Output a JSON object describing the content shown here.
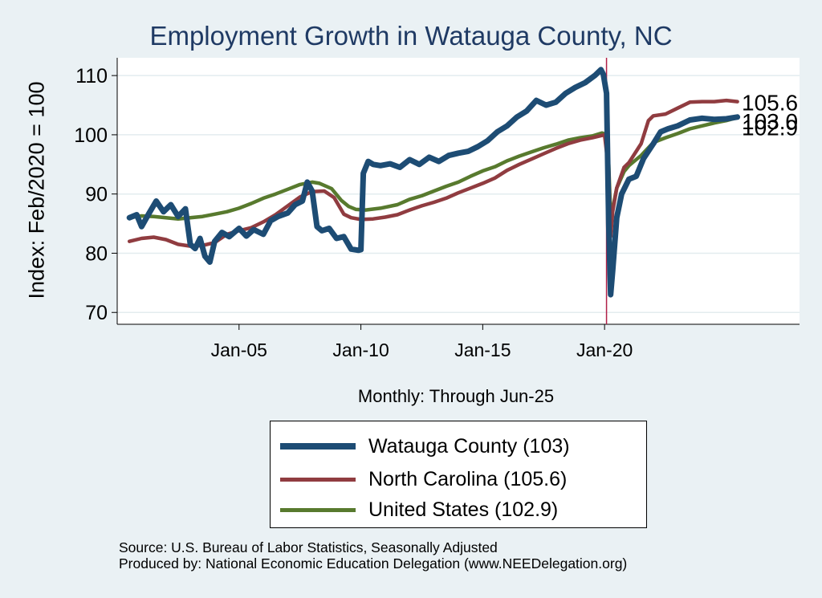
{
  "colors": {
    "background": "#eaf1f4",
    "plot_background": "#ffffff",
    "title": "#1f3a64",
    "watauga": "#1d4c74",
    "north_carolina": "#903c40",
    "united_states": "#587a2e",
    "vline": "#b02048"
  },
  "chart_data": {
    "type": "line",
    "title": "Employment Growth in Watauga  County, NC",
    "xlabel": "Monthly: Through Jun-25",
    "ylabel": "Index: Feb/2020 = 100",
    "xlim": [
      2000.0,
      2028.0
    ],
    "ylim": [
      68,
      113
    ],
    "yticks": [
      70,
      80,
      90,
      100,
      110
    ],
    "xticks": [
      {
        "value": 2005,
        "label": "Jan-05"
      },
      {
        "value": 2010,
        "label": "Jan-10"
      },
      {
        "value": 2015,
        "label": "Jan-15"
      },
      {
        "value": 2020,
        "label": "Jan-20"
      }
    ],
    "vline": 2020.08,
    "grid": true,
    "series": [
      {
        "name": "United States",
        "label": "United States (102.9)",
        "color_key": "united_states",
        "end_label": "102.9",
        "points": [
          [
            2000.5,
            86.0
          ],
          [
            2001.0,
            86.3
          ],
          [
            2001.5,
            86.2
          ],
          [
            2002.0,
            86.0
          ],
          [
            2002.5,
            85.8
          ],
          [
            2003.0,
            86.0
          ],
          [
            2003.5,
            86.2
          ],
          [
            2004.0,
            86.6
          ],
          [
            2004.5,
            87.0
          ],
          [
            2005.0,
            87.6
          ],
          [
            2005.5,
            88.4
          ],
          [
            2006.0,
            89.3
          ],
          [
            2006.5,
            90.0
          ],
          [
            2007.0,
            90.8
          ],
          [
            2007.5,
            91.6
          ],
          [
            2008.0,
            92.0
          ],
          [
            2008.3,
            91.8
          ],
          [
            2008.8,
            90.9
          ],
          [
            2009.2,
            88.9
          ],
          [
            2009.5,
            87.9
          ],
          [
            2009.8,
            87.4
          ],
          [
            2010.2,
            87.3
          ],
          [
            2010.8,
            87.6
          ],
          [
            2011.5,
            88.2
          ],
          [
            2012.0,
            89.1
          ],
          [
            2012.5,
            89.7
          ],
          [
            2013.0,
            90.5
          ],
          [
            2013.5,
            91.3
          ],
          [
            2014.0,
            92.0
          ],
          [
            2014.5,
            93.0
          ],
          [
            2015.0,
            93.9
          ],
          [
            2015.5,
            94.6
          ],
          [
            2016.0,
            95.6
          ],
          [
            2016.5,
            96.4
          ],
          [
            2017.0,
            97.1
          ],
          [
            2017.5,
            97.8
          ],
          [
            2018.0,
            98.4
          ],
          [
            2018.5,
            99.1
          ],
          [
            2019.0,
            99.5
          ],
          [
            2019.5,
            99.8
          ],
          [
            2019.9,
            100.3
          ],
          [
            2020.08,
            100.0
          ],
          [
            2020.17,
            95.0
          ],
          [
            2020.25,
            86.0
          ],
          [
            2020.33,
            87.5
          ],
          [
            2020.5,
            91.0
          ],
          [
            2020.8,
            93.8
          ],
          [
            2021.0,
            94.8
          ],
          [
            2021.5,
            96.5
          ],
          [
            2022.0,
            98.7
          ],
          [
            2022.5,
            99.5
          ],
          [
            2023.0,
            100.2
          ],
          [
            2023.5,
            101.0
          ],
          [
            2024.0,
            101.5
          ],
          [
            2024.5,
            102.0
          ],
          [
            2025.0,
            102.4
          ],
          [
            2025.45,
            102.9
          ]
        ]
      },
      {
        "name": "North Carolina",
        "label": "North Carolina (105.6)",
        "color_key": "north_carolina",
        "end_label": "105.6",
        "points": [
          [
            2000.5,
            82.0
          ],
          [
            2001.0,
            82.5
          ],
          [
            2001.5,
            82.7
          ],
          [
            2002.0,
            82.3
          ],
          [
            2002.5,
            81.5
          ],
          [
            2003.0,
            81.2
          ],
          [
            2003.5,
            81.3
          ],
          [
            2004.0,
            81.8
          ],
          [
            2004.5,
            83.2
          ],
          [
            2005.0,
            83.8
          ],
          [
            2005.5,
            84.3
          ],
          [
            2006.0,
            85.3
          ],
          [
            2006.5,
            86.5
          ],
          [
            2007.0,
            88.0
          ],
          [
            2007.5,
            89.5
          ],
          [
            2008.0,
            90.4
          ],
          [
            2008.5,
            90.5
          ],
          [
            2008.9,
            89.4
          ],
          [
            2009.3,
            86.6
          ],
          [
            2009.6,
            86.0
          ],
          [
            2010.0,
            85.7
          ],
          [
            2010.5,
            85.8
          ],
          [
            2011.0,
            86.1
          ],
          [
            2011.5,
            86.5
          ],
          [
            2012.0,
            87.3
          ],
          [
            2012.5,
            88.0
          ],
          [
            2013.0,
            88.6
          ],
          [
            2013.5,
            89.3
          ],
          [
            2014.0,
            90.2
          ],
          [
            2014.5,
            91.0
          ],
          [
            2015.0,
            91.8
          ],
          [
            2015.5,
            92.7
          ],
          [
            2016.0,
            94.0
          ],
          [
            2016.5,
            95.0
          ],
          [
            2017.0,
            95.9
          ],
          [
            2017.5,
            96.8
          ],
          [
            2018.0,
            97.7
          ],
          [
            2018.5,
            98.5
          ],
          [
            2019.0,
            99.1
          ],
          [
            2019.5,
            99.5
          ],
          [
            2020.0,
            100.0
          ],
          [
            2020.17,
            94.0
          ],
          [
            2020.25,
            82.8
          ],
          [
            2020.33,
            87.0
          ],
          [
            2020.5,
            91.0
          ],
          [
            2020.8,
            94.5
          ],
          [
            2021.0,
            95.3
          ],
          [
            2021.5,
            98.5
          ],
          [
            2021.8,
            102.4
          ],
          [
            2022.0,
            103.2
          ],
          [
            2022.5,
            103.5
          ],
          [
            2023.0,
            104.5
          ],
          [
            2023.5,
            105.5
          ],
          [
            2024.0,
            105.6
          ],
          [
            2024.5,
            105.6
          ],
          [
            2025.0,
            105.8
          ],
          [
            2025.45,
            105.6
          ]
        ]
      },
      {
        "name": "Watauga  County",
        "label": "Watauga  County (103)",
        "color_key": "watauga",
        "end_label": "103.0",
        "points": [
          [
            2000.5,
            86.0
          ],
          [
            2000.8,
            86.5
          ],
          [
            2001.0,
            84.5
          ],
          [
            2001.3,
            86.7
          ],
          [
            2001.6,
            88.8
          ],
          [
            2001.9,
            87.0
          ],
          [
            2002.2,
            88.2
          ],
          [
            2002.5,
            86.2
          ],
          [
            2002.8,
            87.5
          ],
          [
            2003.0,
            81.5
          ],
          [
            2003.2,
            80.8
          ],
          [
            2003.4,
            82.5
          ],
          [
            2003.6,
            79.5
          ],
          [
            2003.8,
            78.5
          ],
          [
            2004.0,
            82.0
          ],
          [
            2004.3,
            83.5
          ],
          [
            2004.6,
            82.8
          ],
          [
            2005.0,
            84.2
          ],
          [
            2005.3,
            82.9
          ],
          [
            2005.6,
            84.0
          ],
          [
            2006.0,
            83.2
          ],
          [
            2006.3,
            85.5
          ],
          [
            2006.6,
            86.2
          ],
          [
            2007.0,
            86.8
          ],
          [
            2007.3,
            88.2
          ],
          [
            2007.6,
            88.8
          ],
          [
            2007.8,
            92.0
          ],
          [
            2008.0,
            90.5
          ],
          [
            2008.2,
            84.5
          ],
          [
            2008.4,
            83.8
          ],
          [
            2008.7,
            84.2
          ],
          [
            2009.0,
            82.5
          ],
          [
            2009.3,
            82.8
          ],
          [
            2009.6,
            80.7
          ],
          [
            2009.9,
            80.5
          ],
          [
            2010.0,
            80.6
          ],
          [
            2010.1,
            93.5
          ],
          [
            2010.3,
            95.5
          ],
          [
            2010.5,
            95.0
          ],
          [
            2010.8,
            94.8
          ],
          [
            2011.2,
            95.1
          ],
          [
            2011.6,
            94.5
          ],
          [
            2012.0,
            95.8
          ],
          [
            2012.4,
            95.0
          ],
          [
            2012.8,
            96.2
          ],
          [
            2013.2,
            95.5
          ],
          [
            2013.6,
            96.5
          ],
          [
            2014.0,
            96.9
          ],
          [
            2014.4,
            97.2
          ],
          [
            2014.8,
            98.0
          ],
          [
            2015.2,
            99.0
          ],
          [
            2015.6,
            100.5
          ],
          [
            2016.0,
            101.5
          ],
          [
            2016.4,
            103.0
          ],
          [
            2016.8,
            104.0
          ],
          [
            2017.2,
            105.8
          ],
          [
            2017.6,
            105.0
          ],
          [
            2018.0,
            105.5
          ],
          [
            2018.4,
            107.0
          ],
          [
            2018.8,
            108.0
          ],
          [
            2019.2,
            108.8
          ],
          [
            2019.6,
            110.0
          ],
          [
            2019.85,
            111.0
          ],
          [
            2019.95,
            110.2
          ],
          [
            2020.08,
            107.0
          ],
          [
            2020.17,
            85.0
          ],
          [
            2020.25,
            73.0
          ],
          [
            2020.33,
            77.0
          ],
          [
            2020.5,
            86.0
          ],
          [
            2020.7,
            90.0
          ],
          [
            2021.0,
            92.5
          ],
          [
            2021.3,
            93.0
          ],
          [
            2021.6,
            96.0
          ],
          [
            2022.0,
            98.5
          ],
          [
            2022.3,
            100.5
          ],
          [
            2022.6,
            101.0
          ],
          [
            2023.0,
            101.5
          ],
          [
            2023.5,
            102.5
          ],
          [
            2024.0,
            102.8
          ],
          [
            2024.5,
            102.6
          ],
          [
            2025.0,
            102.7
          ],
          [
            2025.45,
            103.0
          ]
        ]
      }
    ]
  },
  "legend": {
    "items": [
      {
        "label": "Watauga  County (103)",
        "color_key": "watauga",
        "thickness": 8
      },
      {
        "label": "North Carolina (105.6)",
        "color_key": "north_carolina",
        "thickness": 5
      },
      {
        "label": "United States (102.9)",
        "color_key": "united_states",
        "thickness": 5
      }
    ]
  },
  "source": {
    "line1": "Source: U.S. Bureau of Labor Statistics, Seasonally Adjusted",
    "line2": "Produced by: National Economic Education Delegation (www.NEEDelegation.org)"
  }
}
